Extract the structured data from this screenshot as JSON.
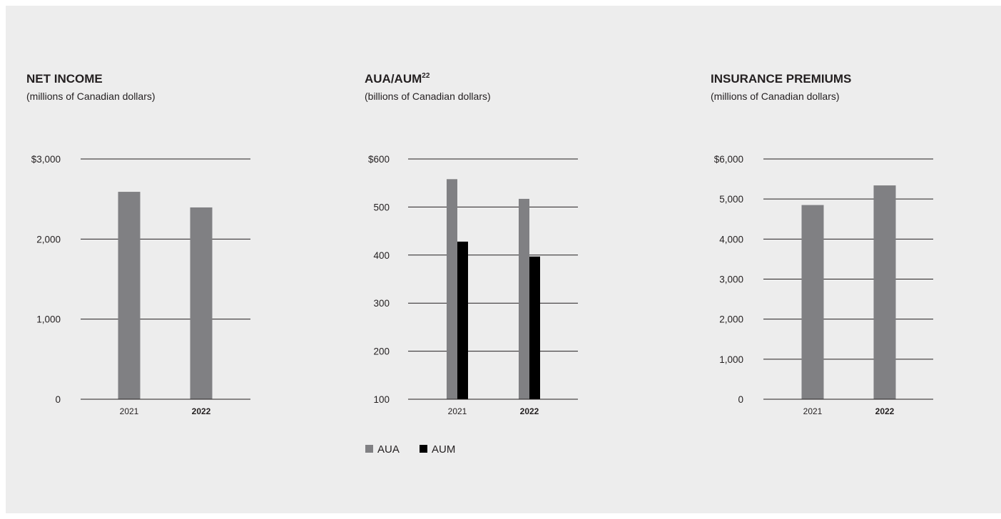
{
  "colors": {
    "background": "#ededed",
    "bar_primary": "#808083",
    "bar_secondary": "#000000",
    "gridline": "#231f20",
    "text": "#231f20"
  },
  "chart_data": [
    {
      "type": "bar",
      "title": "NET INCOME",
      "subtitle": "(millions of Canadian dollars)",
      "categories": [
        "2021",
        "2022"
      ],
      "bold_category": "2022",
      "ylim": [
        0,
        3000
      ],
      "ticks": [
        0,
        1000,
        2000,
        3000
      ],
      "tick_labels": [
        "0",
        "1,000",
        "2,000",
        "$3,000"
      ],
      "grid": true,
      "series": [
        {
          "values": [
            2590,
            2395
          ]
        }
      ]
    },
    {
      "type": "bar",
      "title": "AUA/AUM",
      "title_superscript": "22",
      "subtitle": "(billions of Canadian dollars)",
      "categories": [
        "2021",
        "2022"
      ],
      "bold_category": "2022",
      "ylim": [
        100,
        600
      ],
      "ticks": [
        100,
        200,
        300,
        400,
        500,
        600
      ],
      "tick_labels": [
        "100",
        "200",
        "300",
        "400",
        "500",
        "$600"
      ],
      "grid": true,
      "legend_position": "bottom-left",
      "series": [
        {
          "name": "AUA",
          "values": [
            558,
            517
          ]
        },
        {
          "name": "AUM",
          "values": [
            428,
            397
          ]
        }
      ]
    },
    {
      "type": "bar",
      "title": "INSURANCE PREMIUMS",
      "subtitle": "(millions of Canadian dollars)",
      "categories": [
        "2021",
        "2022"
      ],
      "bold_category": "2022",
      "ylim": [
        0,
        6000
      ],
      "ticks": [
        0,
        1000,
        2000,
        3000,
        4000,
        5000,
        6000
      ],
      "tick_labels": [
        "0",
        "1,000",
        "2,000",
        "3,000",
        "4,000",
        "5,000",
        "$6,000"
      ],
      "grid": true,
      "series": [
        {
          "values": [
            4850,
            5340
          ]
        }
      ]
    }
  ]
}
